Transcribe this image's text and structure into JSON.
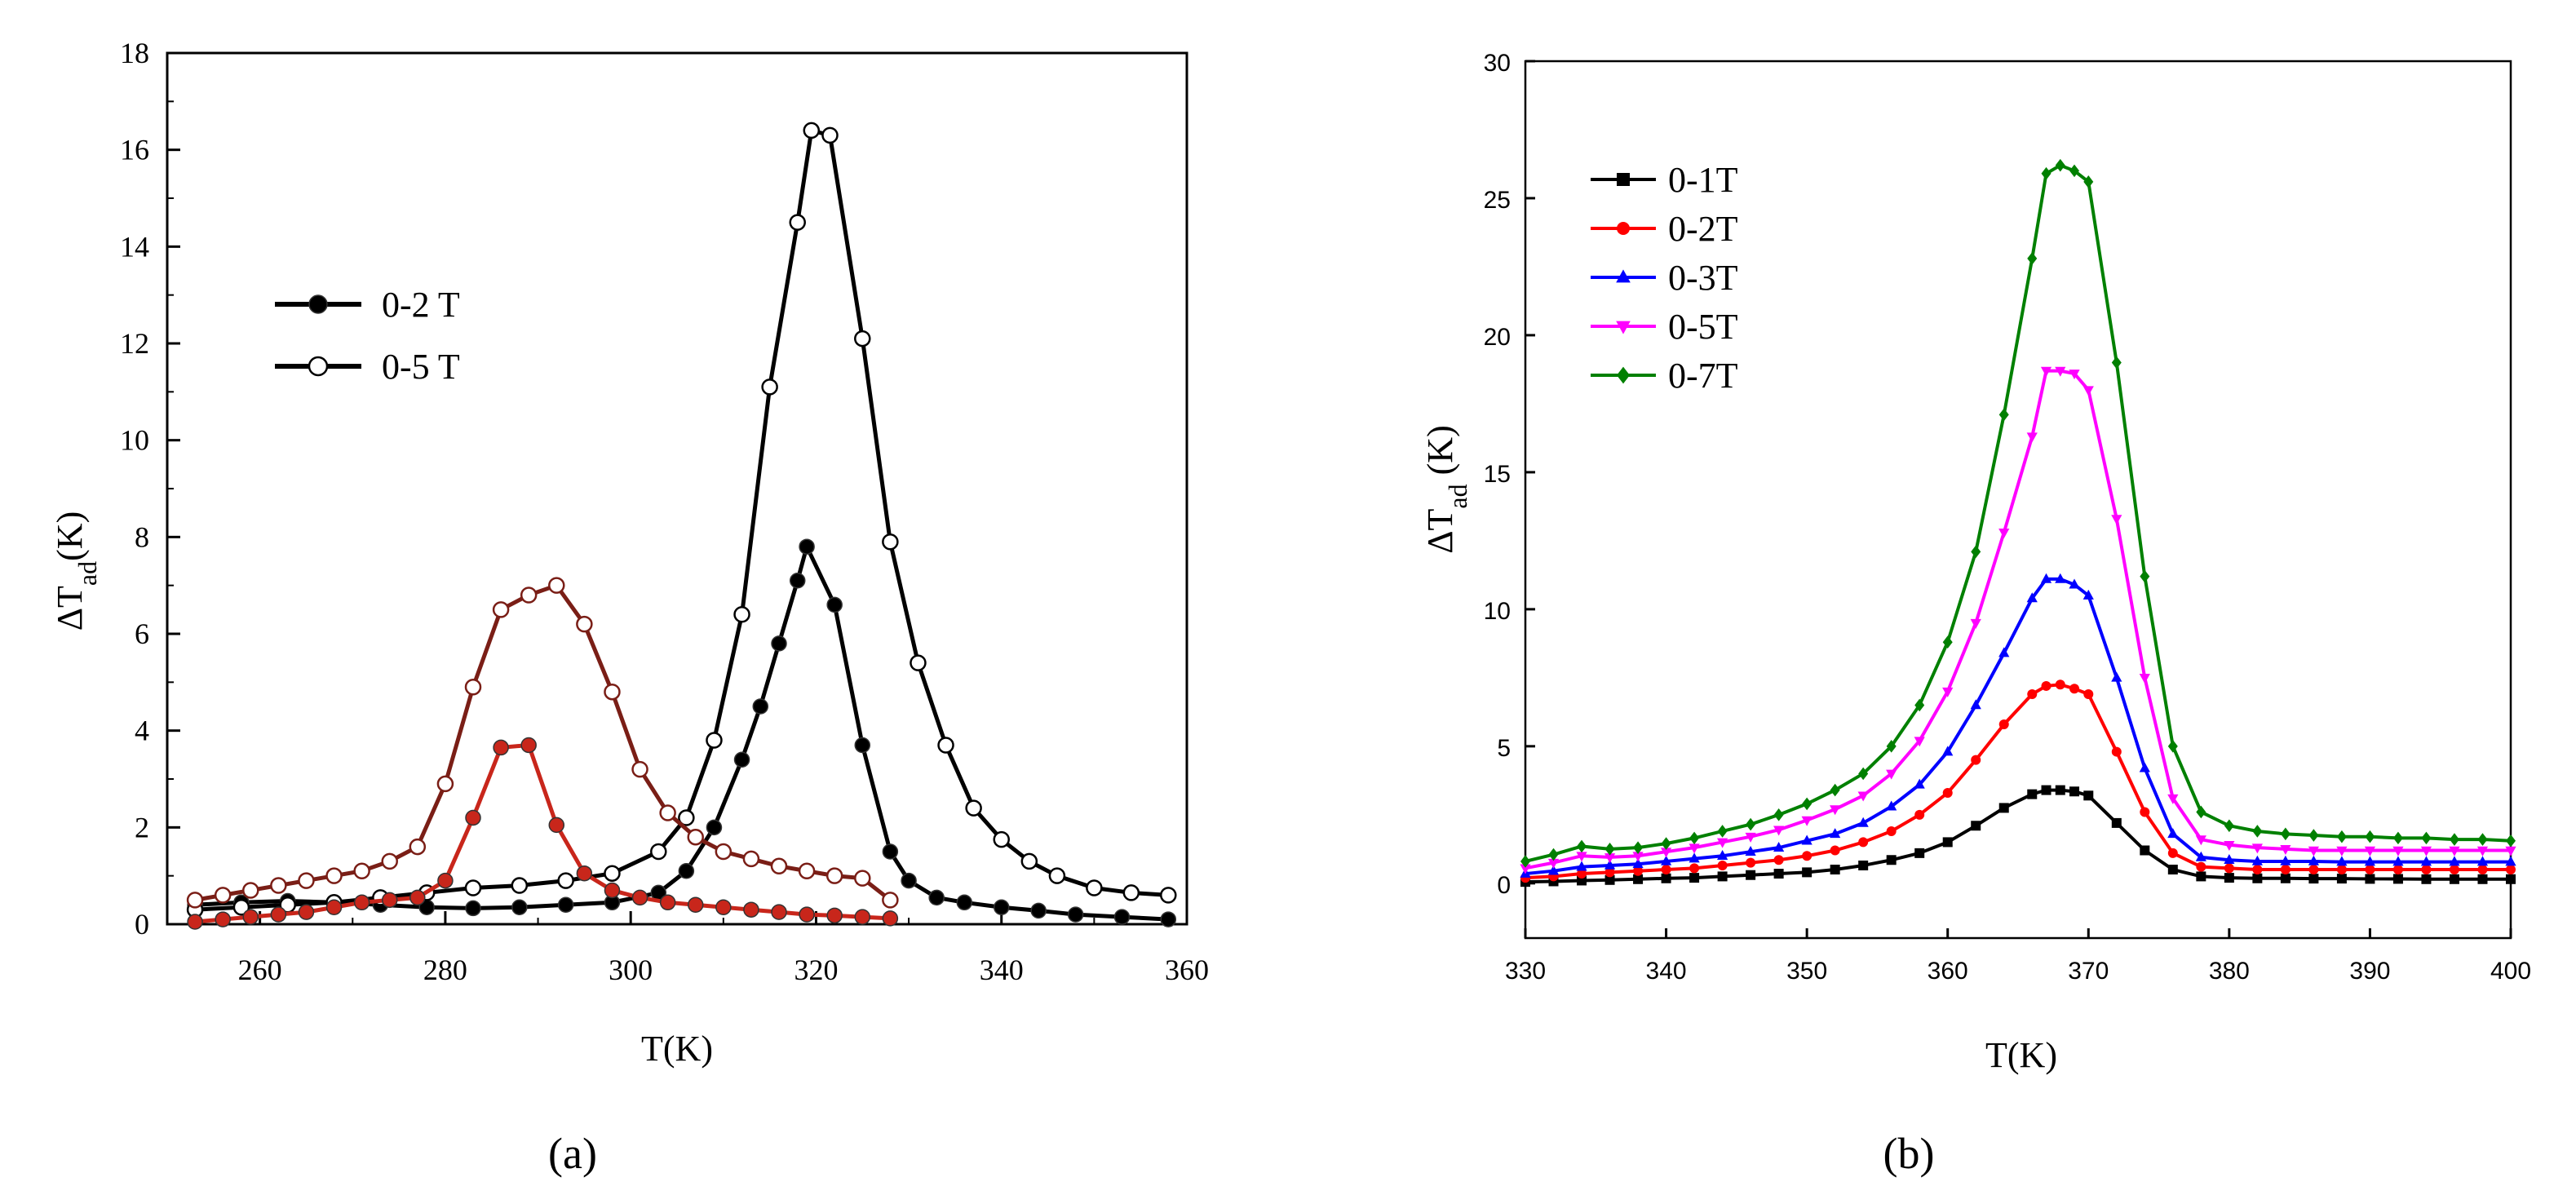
{
  "chart_data": [
    {
      "panel_label": "(a)",
      "type": "line",
      "xlabel": "T(K)",
      "ylabel_main": "ΔT",
      "ylabel_sub": "ad",
      "ylabel_unit": "(K)",
      "xlim": [
        250,
        360
      ],
      "ylim": [
        0,
        18
      ],
      "xticks": [
        260,
        280,
        300,
        320,
        340,
        360
      ],
      "yticks": [
        0,
        2,
        4,
        6,
        8,
        10,
        12,
        14,
        16,
        18
      ],
      "legend": [
        "0-2 T",
        "0-5 T"
      ],
      "colors": {
        "black": "#000000",
        "red": "#c8261b",
        "darkred": "#7a1e16"
      },
      "series": [
        {
          "name": "0-2 T",
          "color": "#000000",
          "marker": "filled-circle",
          "x": [
            253,
            258,
            263,
            268,
            273,
            278,
            283,
            288,
            293,
            298,
            303,
            306,
            309,
            312,
            314,
            316,
            318,
            319,
            322,
            325,
            328,
            330,
            333,
            336,
            340,
            344,
            348,
            353,
            358
          ],
          "y": [
            0.4,
            0.45,
            0.48,
            0.45,
            0.4,
            0.35,
            0.33,
            0.35,
            0.4,
            0.45,
            0.65,
            1.1,
            2.0,
            3.4,
            4.5,
            5.8,
            7.1,
            7.8,
            6.6,
            3.7,
            1.5,
            0.9,
            0.55,
            0.45,
            0.35,
            0.28,
            0.2,
            0.15,
            0.1
          ]
        },
        {
          "name": "0-5 T",
          "color": "#000000",
          "marker": "open-circle",
          "x": [
            253,
            258,
            263,
            268,
            273,
            278,
            283,
            288,
            293,
            298,
            303,
            306,
            309,
            312,
            315,
            318,
            319.5,
            321.5,
            325,
            328,
            331,
            334,
            337,
            340,
            343,
            346,
            350,
            354,
            358
          ],
          "y": [
            0.3,
            0.35,
            0.4,
            0.45,
            0.55,
            0.65,
            0.75,
            0.8,
            0.9,
            1.05,
            1.5,
            2.2,
            3.8,
            6.4,
            11.1,
            14.5,
            16.4,
            16.3,
            12.1,
            7.9,
            5.4,
            3.7,
            2.4,
            1.75,
            1.3,
            1.0,
            0.75,
            0.65,
            0.6
          ]
        },
        {
          "name": "0-2 T (red)",
          "color": "#c8261b",
          "marker": "filled-circle",
          "x": [
            253,
            256,
            259,
            262,
            265,
            268,
            271,
            274,
            277,
            280,
            283,
            286,
            289,
            292,
            295,
            298,
            301,
            304,
            307,
            310,
            313,
            316,
            319,
            322,
            325,
            328
          ],
          "y": [
            0.05,
            0.1,
            0.15,
            0.2,
            0.25,
            0.35,
            0.45,
            0.5,
            0.55,
            0.9,
            2.2,
            3.65,
            3.7,
            2.05,
            1.05,
            0.7,
            0.55,
            0.45,
            0.4,
            0.35,
            0.3,
            0.25,
            0.2,
            0.18,
            0.15,
            0.12
          ]
        },
        {
          "name": "0-5 T (red)",
          "color": "#7a1e16",
          "marker": "open-circle",
          "x": [
            253,
            256,
            259,
            262,
            265,
            268,
            271,
            274,
            277,
            280,
            283,
            286,
            289,
            292,
            295,
            298,
            301,
            304,
            307,
            310,
            313,
            316,
            319,
            322,
            325,
            328
          ],
          "y": [
            0.5,
            0.6,
            0.7,
            0.8,
            0.9,
            1.0,
            1.1,
            1.3,
            1.6,
            2.9,
            4.9,
            6.5,
            6.8,
            7.0,
            6.2,
            4.8,
            3.2,
            2.3,
            1.8,
            1.5,
            1.35,
            1.2,
            1.1,
            1.0,
            0.95,
            0.5
          ]
        }
      ]
    },
    {
      "panel_label": "(b)",
      "type": "line",
      "xlabel": "T(K)",
      "ylabel_main": "ΔT",
      "ylabel_sub": "ad",
      "ylabel_unit": " (K)",
      "xlim": [
        330,
        400
      ],
      "ylim": [
        -2,
        30
      ],
      "xticks": [
        330,
        340,
        350,
        360,
        370,
        380,
        390,
        400
      ],
      "yticks": [
        0,
        5,
        10,
        15,
        20,
        25,
        30
      ],
      "legend": [
        "0-1T",
        "0-2T",
        "0-3T",
        "0-5T",
        "0-7T"
      ],
      "series": [
        {
          "name": "0-1T",
          "color": "#000000",
          "marker": "square",
          "x": [
            330,
            332,
            334,
            336,
            338,
            340,
            342,
            344,
            346,
            348,
            350,
            352,
            354,
            356,
            358,
            360,
            362,
            364,
            366,
            367,
            368,
            369,
            370,
            372,
            374,
            376,
            378,
            380,
            382,
            384,
            386,
            388,
            390,
            392,
            394,
            396,
            398,
            400
          ],
          "y": [
            0.05,
            0.07,
            0.1,
            0.12,
            0.15,
            0.18,
            0.2,
            0.25,
            0.3,
            0.35,
            0.4,
            0.5,
            0.65,
            0.85,
            1.1,
            1.5,
            2.1,
            2.75,
            3.25,
            3.4,
            3.4,
            3.35,
            3.2,
            2.2,
            1.2,
            0.5,
            0.25,
            0.2,
            0.18,
            0.18,
            0.17,
            0.17,
            0.16,
            0.16,
            0.15,
            0.15,
            0.15,
            0.15
          ]
        },
        {
          "name": "0-2T",
          "color": "#ff0000",
          "marker": "circle",
          "x": [
            330,
            332,
            334,
            336,
            338,
            340,
            342,
            344,
            346,
            348,
            350,
            352,
            354,
            356,
            358,
            360,
            362,
            364,
            366,
            367,
            368,
            369,
            370,
            372,
            374,
            376,
            378,
            380,
            382,
            384,
            386,
            388,
            390,
            392,
            394,
            396,
            398,
            400
          ],
          "y": [
            0.2,
            0.25,
            0.35,
            0.4,
            0.45,
            0.5,
            0.55,
            0.65,
            0.75,
            0.85,
            1.0,
            1.2,
            1.5,
            1.9,
            2.5,
            3.3,
            4.5,
            5.8,
            6.9,
            7.2,
            7.25,
            7.1,
            6.9,
            4.8,
            2.6,
            1.1,
            0.6,
            0.55,
            0.5,
            0.5,
            0.5,
            0.5,
            0.5,
            0.5,
            0.5,
            0.5,
            0.5,
            0.5
          ]
        },
        {
          "name": "0-3T",
          "color": "#0000ff",
          "marker": "triangle-up",
          "x": [
            330,
            332,
            334,
            336,
            338,
            340,
            342,
            344,
            346,
            348,
            350,
            352,
            354,
            356,
            358,
            360,
            362,
            364,
            366,
            367,
            368,
            369,
            370,
            372,
            374,
            376,
            378,
            380,
            382,
            384,
            386,
            388,
            390,
            392,
            394,
            396,
            398,
            400
          ],
          "y": [
            0.35,
            0.45,
            0.6,
            0.65,
            0.7,
            0.8,
            0.9,
            1.0,
            1.15,
            1.3,
            1.55,
            1.8,
            2.2,
            2.8,
            3.6,
            4.8,
            6.5,
            8.4,
            10.4,
            11.1,
            11.1,
            10.9,
            10.5,
            7.5,
            4.2,
            1.8,
            0.95,
            0.85,
            0.8,
            0.8,
            0.8,
            0.78,
            0.78,
            0.78,
            0.78,
            0.78,
            0.78,
            0.78
          ]
        },
        {
          "name": "0-5T",
          "color": "#ff00ff",
          "marker": "triangle-down",
          "x": [
            330,
            332,
            334,
            336,
            338,
            340,
            342,
            344,
            346,
            348,
            350,
            352,
            354,
            356,
            358,
            360,
            362,
            364,
            366,
            367,
            368,
            369,
            370,
            372,
            374,
            376,
            378,
            380,
            382,
            384,
            386,
            388,
            390,
            392,
            394,
            396,
            398,
            400
          ],
          "y": [
            0.55,
            0.75,
            1.0,
            0.95,
            1.0,
            1.15,
            1.3,
            1.5,
            1.7,
            1.95,
            2.3,
            2.7,
            3.2,
            4.0,
            5.2,
            7.0,
            9.5,
            12.8,
            16.3,
            18.7,
            18.7,
            18.6,
            18.0,
            13.3,
            7.5,
            3.1,
            1.6,
            1.4,
            1.3,
            1.25,
            1.2,
            1.2,
            1.2,
            1.2,
            1.2,
            1.2,
            1.2,
            1.2
          ]
        },
        {
          "name": "0-7T",
          "color": "#008000",
          "marker": "diamond",
          "x": [
            330,
            332,
            334,
            336,
            338,
            340,
            342,
            344,
            346,
            348,
            350,
            352,
            354,
            356,
            358,
            360,
            362,
            364,
            366,
            367,
            368,
            369,
            370,
            372,
            374,
            376,
            378,
            380,
            382,
            384,
            386,
            388,
            390,
            392,
            394,
            396,
            398,
            400
          ],
          "y": [
            0.8,
            1.05,
            1.35,
            1.25,
            1.3,
            1.45,
            1.65,
            1.9,
            2.15,
            2.5,
            2.9,
            3.4,
            4.0,
            5.0,
            6.5,
            8.8,
            12.1,
            17.1,
            22.8,
            25.9,
            26.2,
            26.0,
            25.6,
            19.0,
            11.2,
            5.0,
            2.6,
            2.1,
            1.9,
            1.8,
            1.75,
            1.7,
            1.7,
            1.65,
            1.65,
            1.6,
            1.6,
            1.55
          ]
        }
      ]
    }
  ]
}
